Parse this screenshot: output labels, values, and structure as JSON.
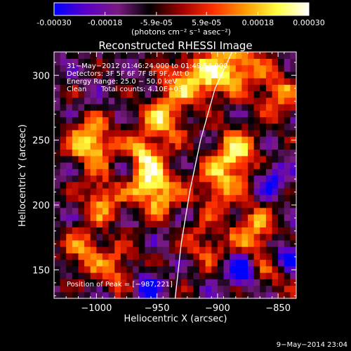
{
  "colorbar": {
    "ticks": [
      "-0.00030",
      "-0.00018",
      "-5.9e-05",
      "5.9e-05",
      "0.00018",
      "0.00030"
    ],
    "tick_values": [
      -0.0003,
      -0.00018,
      -5.9e-05,
      5.9e-05,
      0.00018,
      0.0003
    ],
    "range": [
      -0.0003,
      0.0003
    ],
    "units_label": "(photons cm⁻² s⁻¹ asec⁻²)",
    "colors": [
      "#0000ff",
      "#5b00c8",
      "#7a1a80",
      "#000000",
      "#a00000",
      "#ff3000",
      "#ff9a00",
      "#ffff40",
      "#ffffff"
    ]
  },
  "chart_data": {
    "type": "heatmap",
    "title": "Reconstructed RHESSI Image",
    "xlabel": "Heliocentric X (arcsec)",
    "ylabel": "Heliocentric Y (arcsec)",
    "xlim": [
      -1035,
      -835
    ],
    "ylim": [
      128,
      318
    ],
    "x_ticks": [
      -1000,
      -950,
      -900,
      -850
    ],
    "x_tick_labels": [
      "−1000",
      "−950",
      "−900",
      "−850"
    ],
    "y_ticks": [
      150,
      200,
      250,
      300
    ],
    "y_tick_labels": [
      "150",
      "200",
      "250",
      "300"
    ],
    "limb_curve": [
      [
        -935,
        128
      ],
      [
        -930,
        170
      ],
      [
        -923,
        210
      ],
      [
        -914,
        250
      ],
      [
        -902,
        290
      ],
      [
        -888,
        318
      ]
    ],
    "blobs": [
      {
        "x": -1005,
        "y": 248,
        "w": 0.9
      },
      {
        "x": -995,
        "y": 205,
        "w": 0.6
      },
      {
        "x": -965,
        "y": 233,
        "w": 0.95
      },
      {
        "x": -945,
        "y": 265,
        "w": 0.7
      },
      {
        "x": -950,
        "y": 210,
        "w": 0.8
      },
      {
        "x": -930,
        "y": 295,
        "w": 0.6
      },
      {
        "x": -905,
        "y": 300,
        "w": 0.75
      },
      {
        "x": -880,
        "y": 310,
        "w": 0.7
      },
      {
        "x": -885,
        "y": 240,
        "w": 0.85
      },
      {
        "x": -900,
        "y": 215,
        "w": 0.6
      },
      {
        "x": -870,
        "y": 180,
        "w": 0.65
      },
      {
        "x": -850,
        "y": 285,
        "w": 0.6
      },
      {
        "x": -1010,
        "y": 165,
        "w": 0.55
      },
      {
        "x": -980,
        "y": 150,
        "w": 0.5
      },
      {
        "x": -910,
        "y": 170,
        "w": 0.45
      },
      {
        "x": -855,
        "y": 150,
        "w": 0.4
      }
    ],
    "dips": [
      {
        "x": -975,
        "y": 228,
        "w": 1.0
      },
      {
        "x": -880,
        "y": 150,
        "w": 1.0
      },
      {
        "x": -845,
        "y": 160,
        "w": 0.9
      },
      {
        "x": -960,
        "y": 140,
        "w": 0.8
      },
      {
        "x": -855,
        "y": 220,
        "w": 0.8
      }
    ]
  },
  "annotations": {
    "line1": "31−May−2012 01:46:24.000 to 01:49:54.000",
    "line2": "Detectors: 3F 5F 6F 7F 8F 9F, Att 0",
    "line3": "Energy Range: 25.0 − 50.0 keV",
    "line4_left": "Clean",
    "line4_right": "Total counts: 4.10E+03",
    "peak": "Position of Peak = [−987,221]"
  },
  "footer": {
    "date": "9−May−2014 23:04"
  }
}
